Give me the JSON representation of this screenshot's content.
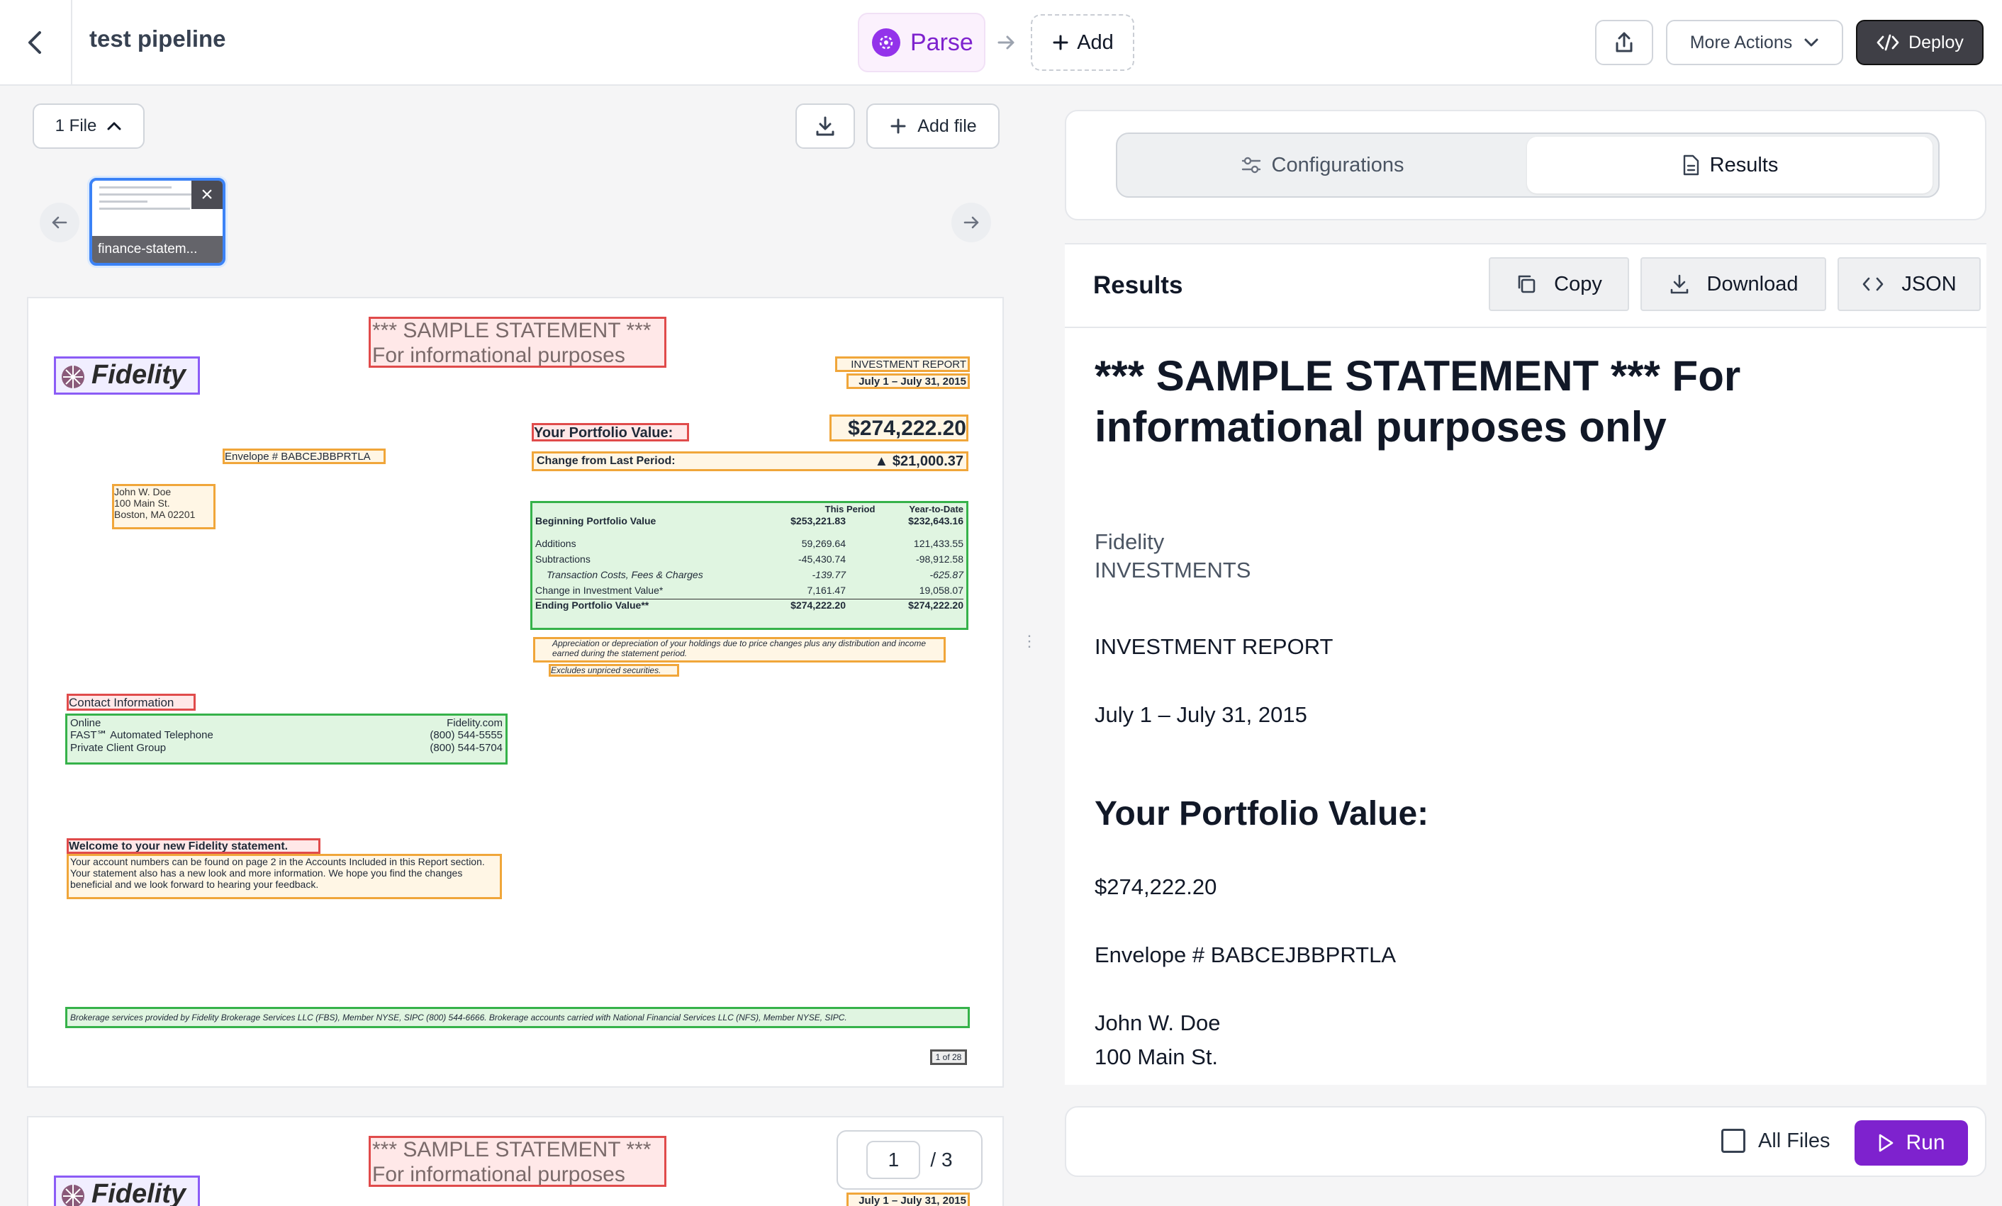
{
  "header": {
    "title": "test pipeline",
    "parse_label": "Parse",
    "add_label": "Add",
    "more_actions_label": "More Actions",
    "deploy_label": "Deploy"
  },
  "left": {
    "files_label": "1 File",
    "add_file_label": "Add file",
    "thumbnail_name": "finance-statem...",
    "page_current": "1",
    "page_total": "/ 3",
    "doc": {
      "sample_title": "*** SAMPLE STATEMENT ***",
      "sample_sub": "For informational purposes only",
      "logo_text": "Fidelity",
      "investment_report": "INVESTMENT REPORT",
      "period": "July 1 – July 31, 2015",
      "portfolio_value_label": "Your Portfolio Value:",
      "portfolio_value": "$274,222.20",
      "change_label": "Change from Last Period:",
      "change_value": "▲  $21,000.37",
      "envelope": "Envelope # BABCEJBBPRTLA",
      "address": [
        "John W. Doe",
        "100 Main St.",
        "Boston, MA  02201"
      ],
      "table_headers": [
        "This Period",
        "Year-to-Date"
      ],
      "table_rows": [
        {
          "label": "Beginning Portfolio Value",
          "a": "$253,221.83",
          "b": "$232,643.16"
        },
        {
          "label": "Additions",
          "a": "59,269.64",
          "b": "121,433.55"
        },
        {
          "label": "Subtractions",
          "a": "-45,430.74",
          "b": "-98,912.58"
        },
        {
          "label": "Transaction Costs, Fees & Charges",
          "a": "-139.77",
          "b": "-625.87"
        },
        {
          "label": "Change in Investment Value*",
          "a": "7,161.47",
          "b": "19,058.07"
        },
        {
          "label": "Ending Portfolio Value**",
          "a": "$274,222.20",
          "b": "$274,222.20"
        }
      ],
      "footnote1": "Appreciation or depreciation of your holdings due to price changes plus any distribution and income earned during the statement period.",
      "footnote2": "Excludes unpriced securities.",
      "contact_title": "Contact Information",
      "contact_rows": [
        {
          "label": "Online",
          "value": "Fidelity.com"
        },
        {
          "label": "FAST℠ Automated Telephone",
          "value": "(800) 544-5555"
        },
        {
          "label": "Private Client Group",
          "value": "(800) 544-5704"
        }
      ],
      "welcome_title": "Welcome to your new Fidelity statement.",
      "welcome_body": "Your account numbers can be found on page 2 in the Accounts Included in this Report section. Your statement also has a new look and more information. We hope you find the changes beneficial and we look forward to hearing your feedback.",
      "brokerage": "Brokerage services provided by Fidelity Brokerage Services LLC (FBS), Member NYSE, SIPC (800) 544-6666. Brokerage accounts carried with National Financial Services LLC (NFS), Member NYSE, SIPC.",
      "page_of": "1 of 28"
    }
  },
  "right": {
    "tab_config": "Configurations",
    "tab_results": "Results",
    "results_title": "Results",
    "copy_label": "Copy",
    "download_label": "Download",
    "json_label": "JSON",
    "md": {
      "h1": "*** SAMPLE STATEMENT *** For informational purposes only",
      "fidelity": "Fidelity",
      "investments": "INVESTMENTS",
      "report": "INVESTMENT REPORT",
      "period": "July 1 – July 31, 2015",
      "h2": "Your Portfolio Value:",
      "value": "$274,222.20",
      "envelope": "Envelope # BABCEJBBPRTLA",
      "name": "John W. Doe",
      "street": "100 Main St."
    },
    "all_files_label": "All Files",
    "run_label": "Run"
  },
  "colors": {
    "accent": "#7e22ce",
    "deploy_bg": "#3f3f46",
    "box_red": "#e04b4b",
    "box_orange": "#f0a63a",
    "box_green": "#36b24a",
    "box_purple": "#8b5cf6"
  },
  "icons": [
    "back-chevron-icon",
    "parse-icon",
    "arrow-right-icon",
    "plus-icon",
    "share-icon",
    "chevron-down-icon",
    "code-icon",
    "chevron-up-icon",
    "download-icon",
    "arrow-left-icon",
    "close-icon",
    "sliders-icon",
    "document-icon",
    "copy-icon",
    "play-icon"
  ]
}
